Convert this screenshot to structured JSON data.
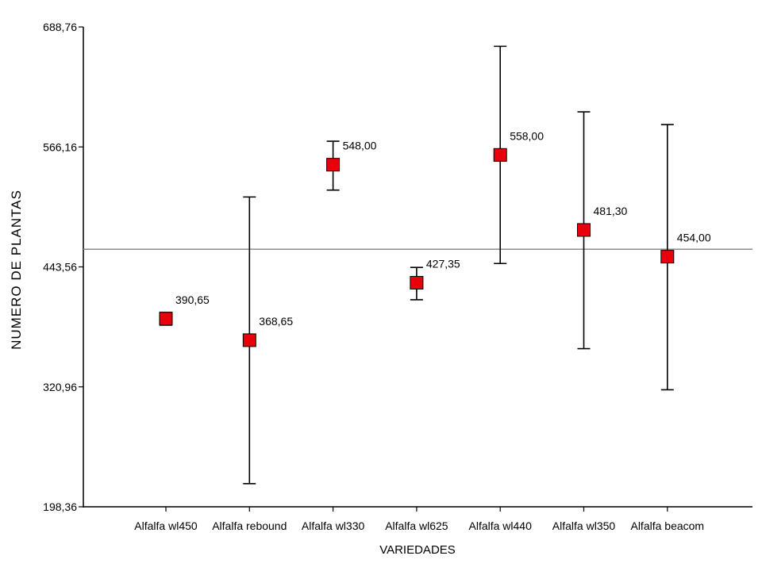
{
  "chart_data": {
    "type": "scatter",
    "xlabel": "VARIEDADES",
    "ylabel": "NUMERO DE PLANTAS",
    "ylim": [
      198.36,
      688.76
    ],
    "yticks": [
      "688,76",
      "566,16",
      "443,56",
      "320,96",
      "198,36"
    ],
    "ytick_values": [
      688.76,
      566.16,
      443.56,
      320.96,
      198.36
    ],
    "reference_line": 461.6,
    "grid": false,
    "marker_color": "#e8000b",
    "categories": [
      "Alfalfa wl450",
      "Alfalfa rebound",
      "Alfalfa wl330",
      "Alfalfa wl625",
      "Alfalfa wl440",
      "Alfalfa wl350",
      "Alfalfa beacom"
    ],
    "points": [
      {
        "category": "Alfalfa wl450",
        "value": 390.65,
        "label": "390,65",
        "low": 384.0,
        "high": 397.0
      },
      {
        "category": "Alfalfa rebound",
        "value": 368.65,
        "label": "368,65",
        "low": 222.0,
        "high": 515.0
      },
      {
        "category": "Alfalfa wl330",
        "value": 548.0,
        "label": "548,00",
        "low": 522.0,
        "high": 572.0
      },
      {
        "category": "Alfalfa wl625",
        "value": 427.35,
        "label": "427,35",
        "low": 410.0,
        "high": 443.0
      },
      {
        "category": "Alfalfa wl440",
        "value": 558.0,
        "label": "558,00",
        "low": 447.0,
        "high": 669.0
      },
      {
        "category": "Alfalfa wl350",
        "value": 481.3,
        "label": "481,30",
        "low": 360.0,
        "high": 602.0
      },
      {
        "category": "Alfalfa beacom",
        "value": 454.0,
        "label": "454,00",
        "low": 318.0,
        "high": 589.0
      }
    ]
  }
}
